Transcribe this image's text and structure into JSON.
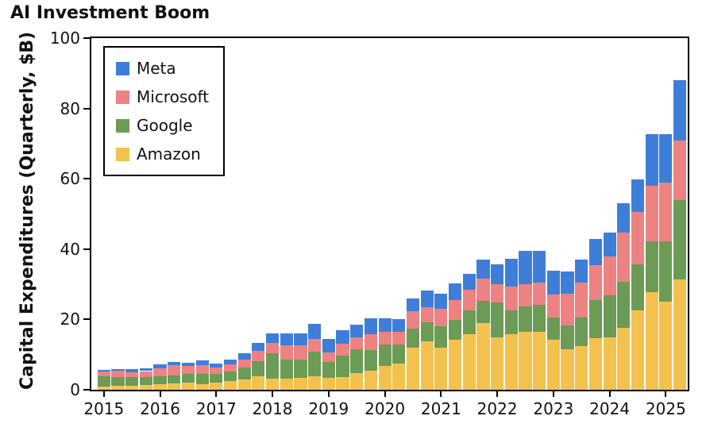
{
  "title": "AI Investment Boom",
  "axes": {
    "y_label": "Capital Expenditures (Quarterly, $B)",
    "y_tick_labels": [
      "0",
      "20",
      "40",
      "60",
      "80",
      "100"
    ],
    "x_tick_labels": [
      "2015",
      "2016",
      "2017",
      "2018",
      "2019",
      "2020",
      "2021",
      "2022",
      "2023",
      "2024",
      "2025"
    ]
  },
  "colors": {
    "meta": "#3E7ED8",
    "microsoft": "#ED8282",
    "google": "#6B9B55",
    "amazon": "#F3C24E",
    "spine": "#000000",
    "text": "#111111"
  },
  "chart_data": {
    "type": "bar",
    "stacked": true,
    "grid": false,
    "legend_position": "upper left",
    "title": "AI Investment Boom",
    "xlabel": "",
    "ylabel": "Capital Expenditures (Quarterly, $B)",
    "ylim": [
      0,
      100
    ],
    "y_ticks": [
      0,
      20,
      40,
      60,
      80,
      100
    ],
    "x_tick_labels": [
      "2015",
      "2016",
      "2017",
      "2018",
      "2019",
      "2020",
      "2021",
      "2022",
      "2023",
      "2024",
      "2025"
    ],
    "categories": [
      "2015 Q1",
      "2015 Q2",
      "2015 Q3",
      "2015 Q4",
      "2016 Q1",
      "2016 Q2",
      "2016 Q3",
      "2016 Q4",
      "2017 Q1",
      "2017 Q2",
      "2017 Q3",
      "2017 Q4",
      "2018 Q1",
      "2018 Q2",
      "2018 Q3",
      "2018 Q4",
      "2019 Q1",
      "2019 Q2",
      "2019 Q3",
      "2019 Q4",
      "2020 Q1",
      "2020 Q2",
      "2020 Q3",
      "2020 Q4",
      "2021 Q1",
      "2021 Q2",
      "2021 Q3",
      "2021 Q4",
      "2022 Q1",
      "2022 Q2",
      "2022 Q3",
      "2022 Q4",
      "2023 Q1",
      "2023 Q2",
      "2023 Q3",
      "2023 Q4",
      "2024 Q1",
      "2024 Q2",
      "2024 Q3",
      "2024 Q4",
      "2025 Q1",
      "2025 Q2"
    ],
    "stack_order_bottom_to_top": [
      "Amazon",
      "Google",
      "Microsoft",
      "Meta"
    ],
    "series": [
      {
        "name": "Meta",
        "color": "#3E7ED8",
        "values": [
          0.5,
          0.55,
          0.78,
          0.69,
          1.13,
          0.99,
          1.1,
          1.32,
          1.27,
          1.44,
          1.76,
          2.26,
          2.81,
          3.46,
          3.34,
          4.37,
          3.84,
          3.83,
          3.67,
          4.31,
          3.67,
          3.4,
          3.66,
          4.82,
          4.3,
          4.67,
          4.54,
          5.37,
          5.55,
          7.73,
          9.52,
          9.04,
          6.82,
          6.35,
          6.54,
          7.59,
          6.72,
          8.47,
          9.21,
          14.84,
          13.69,
          17.01
        ]
      },
      {
        "name": "Microsoft",
        "color": "#ED8282",
        "values": [
          1.38,
          1.73,
          1.39,
          1.79,
          2.31,
          2.85,
          2.19,
          2.53,
          1.7,
          1.84,
          2.13,
          2.87,
          2.93,
          3.98,
          3.98,
          3.66,
          2.61,
          3.4,
          3.39,
          4.54,
          3.77,
          3.74,
          4.91,
          4.18,
          5.09,
          5.81,
          5.94,
          6.34,
          5.34,
          6.87,
          6.28,
          6.27,
          6.61,
          8.94,
          9.92,
          9.74,
          10.95,
          13.87,
          14.92,
          15.8,
          16.75,
          17.08
        ]
      },
      {
        "name": "Google",
        "color": "#6B9B55",
        "values": [
          2.93,
          2.53,
          2.41,
          2.1,
          2.35,
          2.45,
          2.55,
          2.85,
          2.48,
          2.79,
          3.5,
          4.31,
          7.3,
          5.48,
          5.28,
          7.08,
          4.64,
          6.13,
          6.73,
          6.05,
          6.0,
          5.39,
          5.41,
          5.48,
          5.94,
          5.5,
          6.82,
          6.38,
          9.79,
          6.83,
          7.28,
          7.6,
          6.29,
          6.89,
          8.06,
          11.02,
          12.01,
          13.19,
          13.06,
          14.28,
          17.2,
          22.45
        ]
      },
      {
        "name": "Amazon",
        "color": "#F3C24E",
        "values": [
          0.87,
          1.05,
          1.19,
          1.42,
          1.53,
          1.71,
          1.93,
          1.57,
          2.1,
          2.5,
          2.9,
          3.9,
          3.1,
          3.19,
          3.35,
          3.73,
          3.29,
          3.56,
          4.7,
          5.32,
          6.8,
          7.46,
          12.06,
          13.8,
          12.08,
          14.26,
          15.75,
          18.94,
          14.95,
          15.72,
          16.38,
          16.59,
          14.21,
          11.46,
          12.48,
          14.59,
          14.92,
          17.62,
          22.62,
          27.83,
          25.02,
          31.4
        ]
      }
    ]
  }
}
